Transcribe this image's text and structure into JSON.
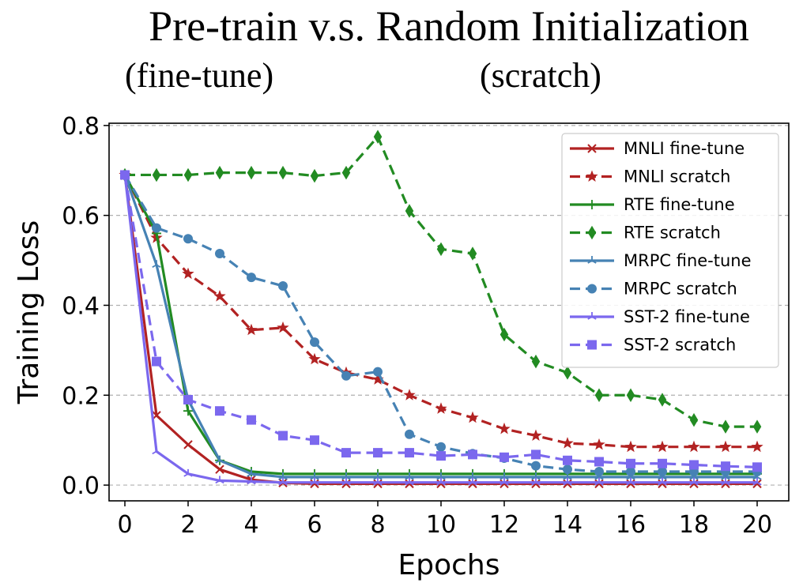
{
  "chart_data": {
    "type": "line",
    "title": "Pre-train v.s. Random Initialization",
    "subtitle_left": "(fine-tune)",
    "subtitle_right": "(scratch)",
    "xlabel": "Epochs",
    "ylabel": "Training Loss",
    "xlim": [
      -0.5,
      21
    ],
    "ylim": [
      -0.035,
      0.805
    ],
    "xticks": [
      0,
      2,
      4,
      6,
      8,
      10,
      12,
      14,
      16,
      18,
      20
    ],
    "yticks": [
      0.0,
      0.2,
      0.4,
      0.6,
      0.8
    ],
    "ytick_labels": [
      "0.0",
      "0.2",
      "0.4",
      "0.6",
      "0.8"
    ],
    "grid": "horizontal dashed",
    "legend_position": "top-right",
    "x": [
      0,
      1,
      2,
      3,
      4,
      5,
      6,
      7,
      8,
      9,
      10,
      11,
      12,
      13,
      14,
      15,
      16,
      17,
      18,
      19,
      20
    ],
    "series": [
      {
        "name": "MNLI fine-tune",
        "color": "#b22222",
        "style": "solid",
        "marker": "x",
        "values": [
          0.69,
          0.155,
          0.09,
          0.035,
          0.012,
          0.005,
          0.003,
          0.003,
          0.003,
          0.003,
          0.003,
          0.003,
          0.003,
          0.003,
          0.003,
          0.003,
          0.003,
          0.003,
          0.003,
          0.003,
          0.003
        ]
      },
      {
        "name": "MNLI scratch",
        "color": "#b22222",
        "style": "dashed",
        "marker": "star",
        "values": [
          0.69,
          0.55,
          0.47,
          0.42,
          0.345,
          0.35,
          0.28,
          0.25,
          0.235,
          0.2,
          0.17,
          0.15,
          0.125,
          0.11,
          0.093,
          0.09,
          0.085,
          0.085,
          0.085,
          0.085,
          0.085
        ]
      },
      {
        "name": "RTE fine-tune",
        "color": "#228b22",
        "style": "solid",
        "marker": "plus",
        "values": [
          0.69,
          0.56,
          0.165,
          0.055,
          0.03,
          0.025,
          0.025,
          0.025,
          0.025,
          0.025,
          0.025,
          0.025,
          0.025,
          0.025,
          0.025,
          0.025,
          0.025,
          0.025,
          0.025,
          0.025,
          0.025
        ]
      },
      {
        "name": "RTE scratch",
        "color": "#228b22",
        "style": "dashed",
        "marker": "diamond",
        "values": [
          0.69,
          0.69,
          0.69,
          0.695,
          0.695,
          0.695,
          0.688,
          0.695,
          0.775,
          0.61,
          0.525,
          0.515,
          0.335,
          0.275,
          0.25,
          0.2,
          0.2,
          0.19,
          0.145,
          0.13,
          0.13
        ]
      },
      {
        "name": "MRPC fine-tune",
        "color": "#4682b4",
        "style": "solid",
        "marker": "tri",
        "values": [
          0.69,
          0.49,
          0.19,
          0.055,
          0.025,
          0.018,
          0.018,
          0.018,
          0.018,
          0.018,
          0.018,
          0.018,
          0.018,
          0.018,
          0.018,
          0.018,
          0.018,
          0.018,
          0.018,
          0.018,
          0.018
        ]
      },
      {
        "name": "MRPC scratch",
        "color": "#4682b4",
        "style": "dashed",
        "marker": "circle",
        "values": [
          0.69,
          0.572,
          0.548,
          0.515,
          0.462,
          0.443,
          0.318,
          0.243,
          0.252,
          0.113,
          0.085,
          0.07,
          0.06,
          0.043,
          0.035,
          0.03,
          0.03,
          0.03,
          0.03,
          0.03,
          0.03
        ]
      },
      {
        "name": "SST-2 fine-tune",
        "color": "#7b68ee",
        "style": "solid",
        "marker": "tri",
        "values": [
          0.69,
          0.075,
          0.025,
          0.01,
          0.008,
          0.006,
          0.006,
          0.006,
          0.006,
          0.006,
          0.006,
          0.006,
          0.006,
          0.006,
          0.006,
          0.006,
          0.006,
          0.006,
          0.006,
          0.006,
          0.006
        ]
      },
      {
        "name": "SST-2 scratch",
        "color": "#7b68ee",
        "style": "dashed",
        "marker": "square",
        "values": [
          0.69,
          0.275,
          0.19,
          0.165,
          0.145,
          0.11,
          0.1,
          0.072,
          0.072,
          0.072,
          0.065,
          0.068,
          0.062,
          0.068,
          0.055,
          0.052,
          0.048,
          0.048,
          0.045,
          0.042,
          0.04
        ]
      }
    ]
  }
}
